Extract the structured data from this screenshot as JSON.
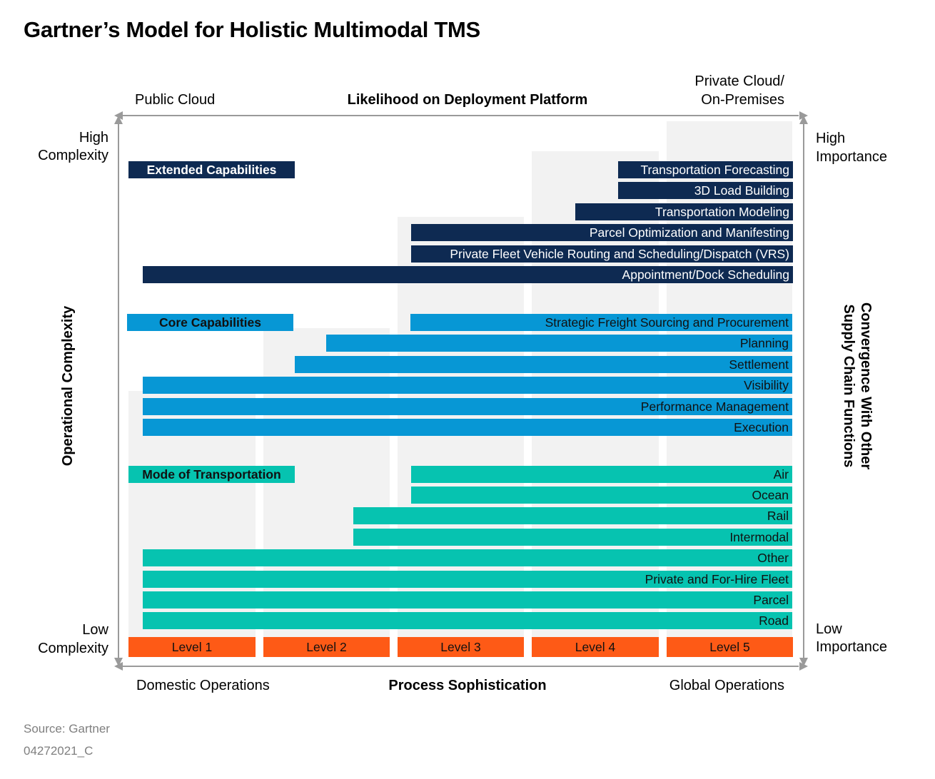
{
  "title": "Gartner’s Model for Holistic Multimodal TMS",
  "top_axis": {
    "left_label": "Public Cloud",
    "center_label": "Likelihood on Deployment Platform",
    "right_label_line1": "Private Cloud/",
    "right_label_line2": "On-Premises"
  },
  "left_axis": {
    "top_line1": "High",
    "top_line2": "Complexity",
    "bottom_line1": "Low",
    "bottom_line2": "Complexity",
    "title": "Operational Complexity"
  },
  "right_axis": {
    "top_line1": "High",
    "top_line2": "Importance",
    "bottom_line1": "Low",
    "bottom_line2": "Importance",
    "title_line1": "Convergence With Other",
    "title_line2": "Supply Chain Functions"
  },
  "bottom_axis": {
    "left_label": "Domestic Operations",
    "center_label": "Process Sophistication",
    "right_label": "Global Operations"
  },
  "levels": [
    "Level 1",
    "Level 2",
    "Level 3",
    "Level 4",
    "Level 5"
  ],
  "groups": [
    {
      "heading": "Extended Capabilities",
      "color": "#0e2a52",
      "items": [
        {
          "label": "Transportation Forecasting",
          "starts_at_level": 5
        },
        {
          "label": "3D Load Building",
          "starts_at_level": 5
        },
        {
          "label": "Transportation Modeling",
          "starts_at_level": 4
        },
        {
          "label": "Parcel Optimization and Manifesting",
          "starts_at_level": 3
        },
        {
          "label": "Private Fleet Vehicle Routing and Scheduling/Dispatch (VRS)",
          "starts_at_level": 3
        },
        {
          "label": "Appointment/Dock Scheduling",
          "starts_at_level": 1
        }
      ]
    },
    {
      "heading": "Core Capabilities",
      "color": "#0797d5",
      "items": [
        {
          "label": "Strategic Freight Sourcing and Procurement",
          "starts_at_level": 3
        },
        {
          "label": "Planning",
          "starts_at_level": 2
        },
        {
          "label": "Settlement",
          "starts_at_level": 2
        },
        {
          "label": "Visibility",
          "starts_at_level": 1
        },
        {
          "label": "Performance Management",
          "starts_at_level": 1
        },
        {
          "label": "Execution",
          "starts_at_level": 1
        }
      ]
    },
    {
      "heading": "Mode of Transportation",
      "color": "#06c3b0",
      "items": [
        {
          "label": "Air",
          "starts_at_level": 3
        },
        {
          "label": "Ocean",
          "starts_at_level": 3
        },
        {
          "label": "Rail",
          "starts_at_level": 2
        },
        {
          "label": "Intermodal",
          "starts_at_level": 2
        },
        {
          "label": "Other",
          "starts_at_level": 1
        },
        {
          "label": "Private and For-Hire Fleet",
          "starts_at_level": 1
        },
        {
          "label": "Parcel",
          "starts_at_level": 1
        },
        {
          "label": "Road",
          "starts_at_level": 1
        }
      ]
    }
  ],
  "level_color": "#fe5a16",
  "source": "Source: Gartner",
  "doc_id": "04272021_C"
}
